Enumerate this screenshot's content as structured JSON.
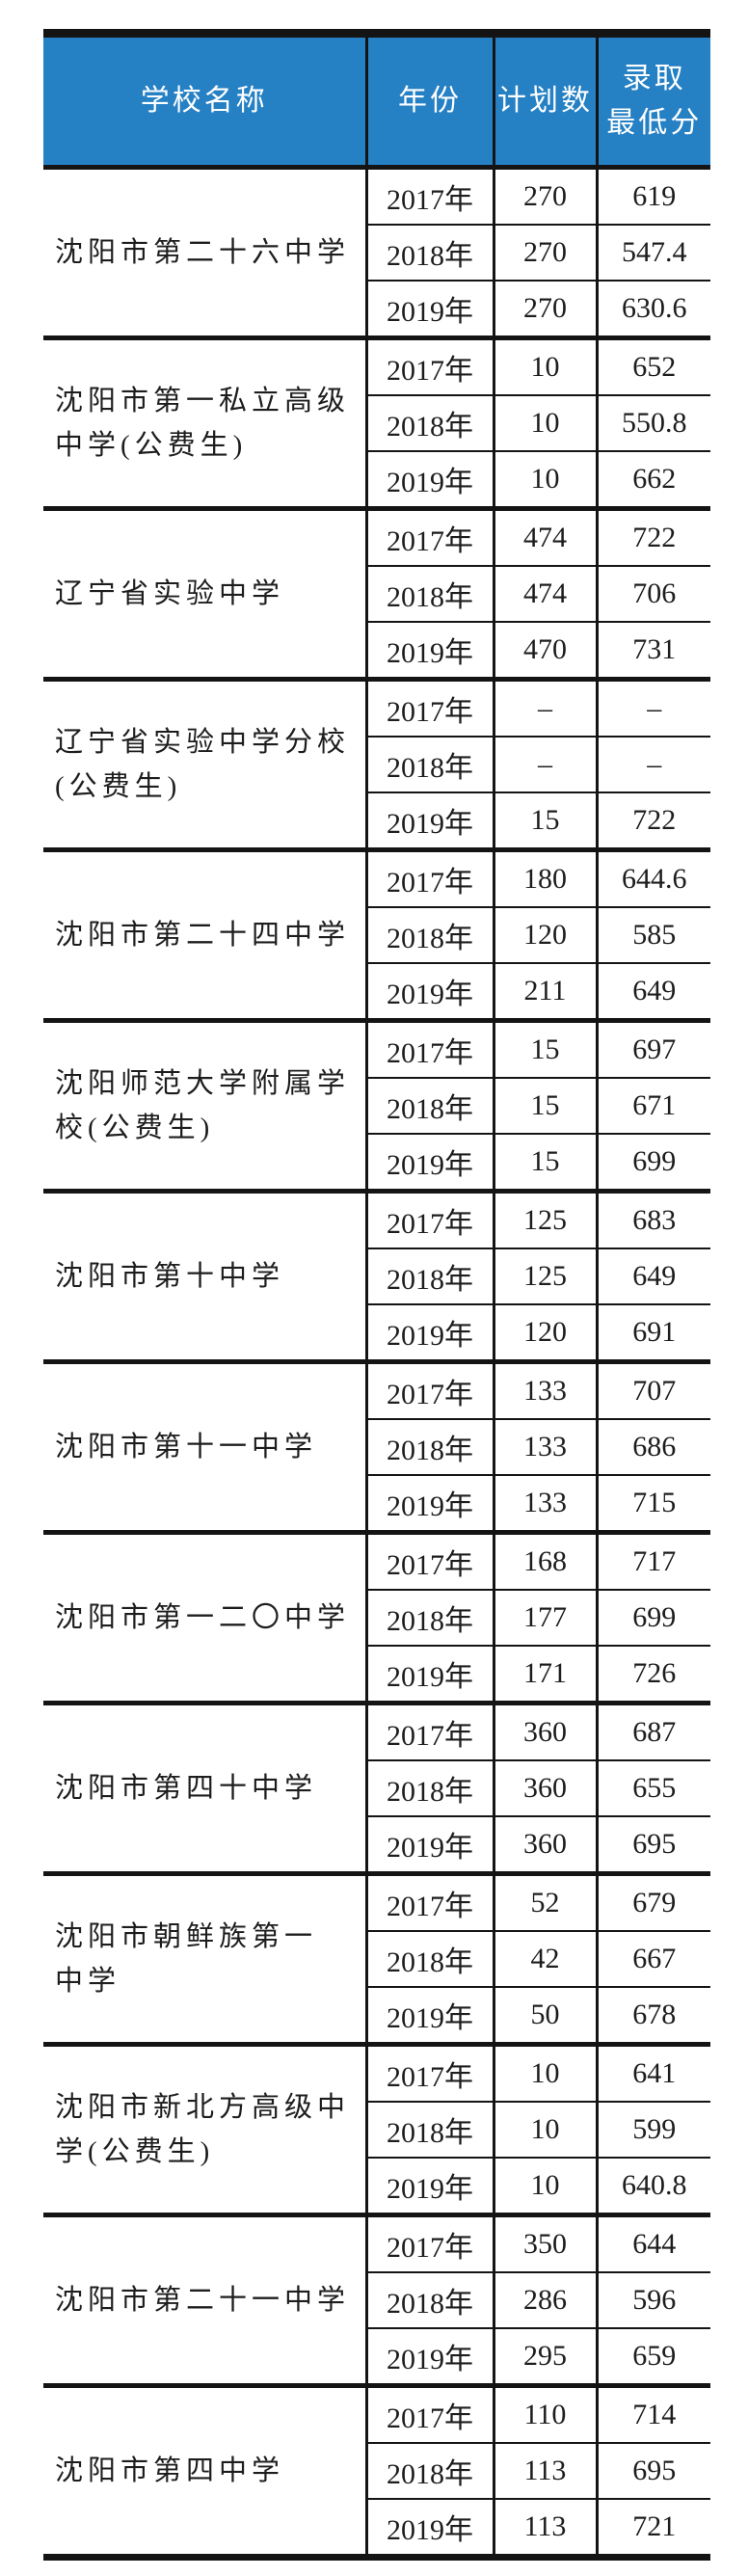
{
  "table": {
    "header": {
      "school": "学校名称",
      "year": "年份",
      "plan": "计划数",
      "score": "录取\n最低分"
    },
    "schools": [
      {
        "name": "沈阳市第二十六中学",
        "rows": [
          {
            "year": "2017年",
            "plan": "270",
            "score": "619"
          },
          {
            "year": "2018年",
            "plan": "270",
            "score": "547.4"
          },
          {
            "year": "2019年",
            "plan": "270",
            "score": "630.6"
          }
        ]
      },
      {
        "name": "沈阳市第一私立高级\n中学(公费生)",
        "rows": [
          {
            "year": "2017年",
            "plan": "10",
            "score": "652"
          },
          {
            "year": "2018年",
            "plan": "10",
            "score": "550.8"
          },
          {
            "year": "2019年",
            "plan": "10",
            "score": "662"
          }
        ]
      },
      {
        "name": "辽宁省实验中学",
        "rows": [
          {
            "year": "2017年",
            "plan": "474",
            "score": "722"
          },
          {
            "year": "2018年",
            "plan": "474",
            "score": "706"
          },
          {
            "year": "2019年",
            "plan": "470",
            "score": "731"
          }
        ]
      },
      {
        "name": "辽宁省实验中学分校\n(公费生)",
        "rows": [
          {
            "year": "2017年",
            "plan": "–",
            "score": "–"
          },
          {
            "year": "2018年",
            "plan": "–",
            "score": "–"
          },
          {
            "year": "2019年",
            "plan": "15",
            "score": "722"
          }
        ]
      },
      {
        "name": "沈阳市第二十四中学",
        "rows": [
          {
            "year": "2017年",
            "plan": "180",
            "score": "644.6"
          },
          {
            "year": "2018年",
            "plan": "120",
            "score": "585"
          },
          {
            "year": "2019年",
            "plan": "211",
            "score": "649"
          }
        ]
      },
      {
        "name": "沈阳师范大学附属学\n校(公费生)",
        "rows": [
          {
            "year": "2017年",
            "plan": "15",
            "score": "697"
          },
          {
            "year": "2018年",
            "plan": "15",
            "score": "671"
          },
          {
            "year": "2019年",
            "plan": "15",
            "score": "699"
          }
        ]
      },
      {
        "name": "沈阳市第十中学",
        "rows": [
          {
            "year": "2017年",
            "plan": "125",
            "score": "683"
          },
          {
            "year": "2018年",
            "plan": "125",
            "score": "649"
          },
          {
            "year": "2019年",
            "plan": "120",
            "score": "691"
          }
        ]
      },
      {
        "name": "沈阳市第十一中学",
        "rows": [
          {
            "year": "2017年",
            "plan": "133",
            "score": "707"
          },
          {
            "year": "2018年",
            "plan": "133",
            "score": "686"
          },
          {
            "year": "2019年",
            "plan": "133",
            "score": "715"
          }
        ]
      },
      {
        "name": "沈阳市第一二〇中学",
        "rows": [
          {
            "year": "2017年",
            "plan": "168",
            "score": "717"
          },
          {
            "year": "2018年",
            "plan": "177",
            "score": "699"
          },
          {
            "year": "2019年",
            "plan": "171",
            "score": "726"
          }
        ]
      },
      {
        "name": "沈阳市第四十中学",
        "rows": [
          {
            "year": "2017年",
            "plan": "360",
            "score": "687"
          },
          {
            "year": "2018年",
            "plan": "360",
            "score": "655"
          },
          {
            "year": "2019年",
            "plan": "360",
            "score": "695"
          }
        ]
      },
      {
        "name": "沈阳市朝鲜族第一\n中学",
        "rows": [
          {
            "year": "2017年",
            "plan": "52",
            "score": "679"
          },
          {
            "year": "2018年",
            "plan": "42",
            "score": "667"
          },
          {
            "year": "2019年",
            "plan": "50",
            "score": "678"
          }
        ]
      },
      {
        "name": "沈阳市新北方高级中\n学(公费生)",
        "rows": [
          {
            "year": "2017年",
            "plan": "10",
            "score": "641"
          },
          {
            "year": "2018年",
            "plan": "10",
            "score": "599"
          },
          {
            "year": "2019年",
            "plan": "10",
            "score": "640.8"
          }
        ]
      },
      {
        "name": "沈阳市第二十一中学",
        "rows": [
          {
            "year": "2017年",
            "plan": "350",
            "score": "644"
          },
          {
            "year": "2018年",
            "plan": "286",
            "score": "596"
          },
          {
            "year": "2019年",
            "plan": "295",
            "score": "659"
          }
        ]
      },
      {
        "name": "沈阳市第四中学",
        "rows": [
          {
            "year": "2017年",
            "plan": "110",
            "score": "714"
          },
          {
            "year": "2018年",
            "plan": "113",
            "score": "695"
          },
          {
            "year": "2019年",
            "plan": "113",
            "score": "721"
          }
        ]
      }
    ],
    "colors": {
      "header_bg": "#2580C4",
      "header_text": "#ffffff",
      "border": "#141414"
    }
  }
}
